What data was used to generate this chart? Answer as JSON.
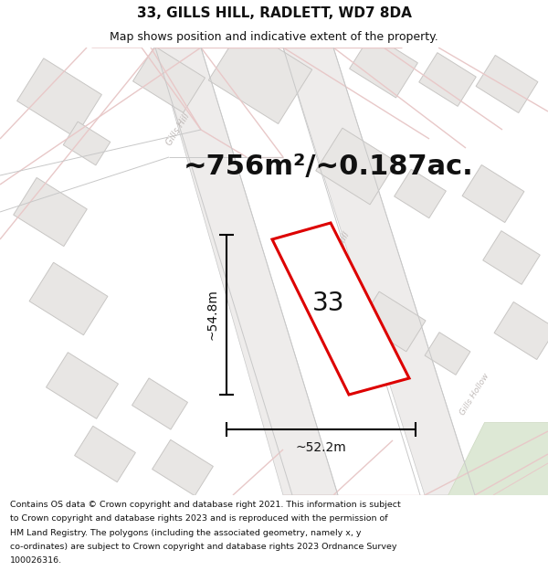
{
  "title": "33, GILLS HILL, RADLETT, WD7 8DA",
  "subtitle": "Map shows position and indicative extent of the property.",
  "area_text": "~756m²/~0.187ac.",
  "dim_height": "~54.8m",
  "dim_width": "~52.2m",
  "label_33": "33",
  "footer_lines": [
    "Contains OS data © Crown copyright and database right 2021. This information is subject",
    "to Crown copyright and database rights 2023 and is reproduced with the permission of",
    "HM Land Registry. The polygons (including the associated geometry, namely x, y",
    "co-ordinates) are subject to Crown copyright and database rights 2023 Ordnance Survey",
    "100026316."
  ],
  "bg_color": "#ffffff",
  "map_bg": "#ffffff",
  "road_strip_color": "#eeeceb",
  "road_line_color": "#e8c8c8",
  "road_gray_line": "#c8c8c8",
  "building_fill": "#e8e6e4",
  "building_edge": "#c8c6c4",
  "highlight_color": "#dd0000",
  "text_color": "#111111",
  "road_label_color": "#c0bab8",
  "title_fontsize": 11,
  "subtitle_fontsize": 9,
  "area_fontsize": 22,
  "label_fontsize": 20,
  "dim_fontsize": 10,
  "footer_fontsize": 6.8
}
